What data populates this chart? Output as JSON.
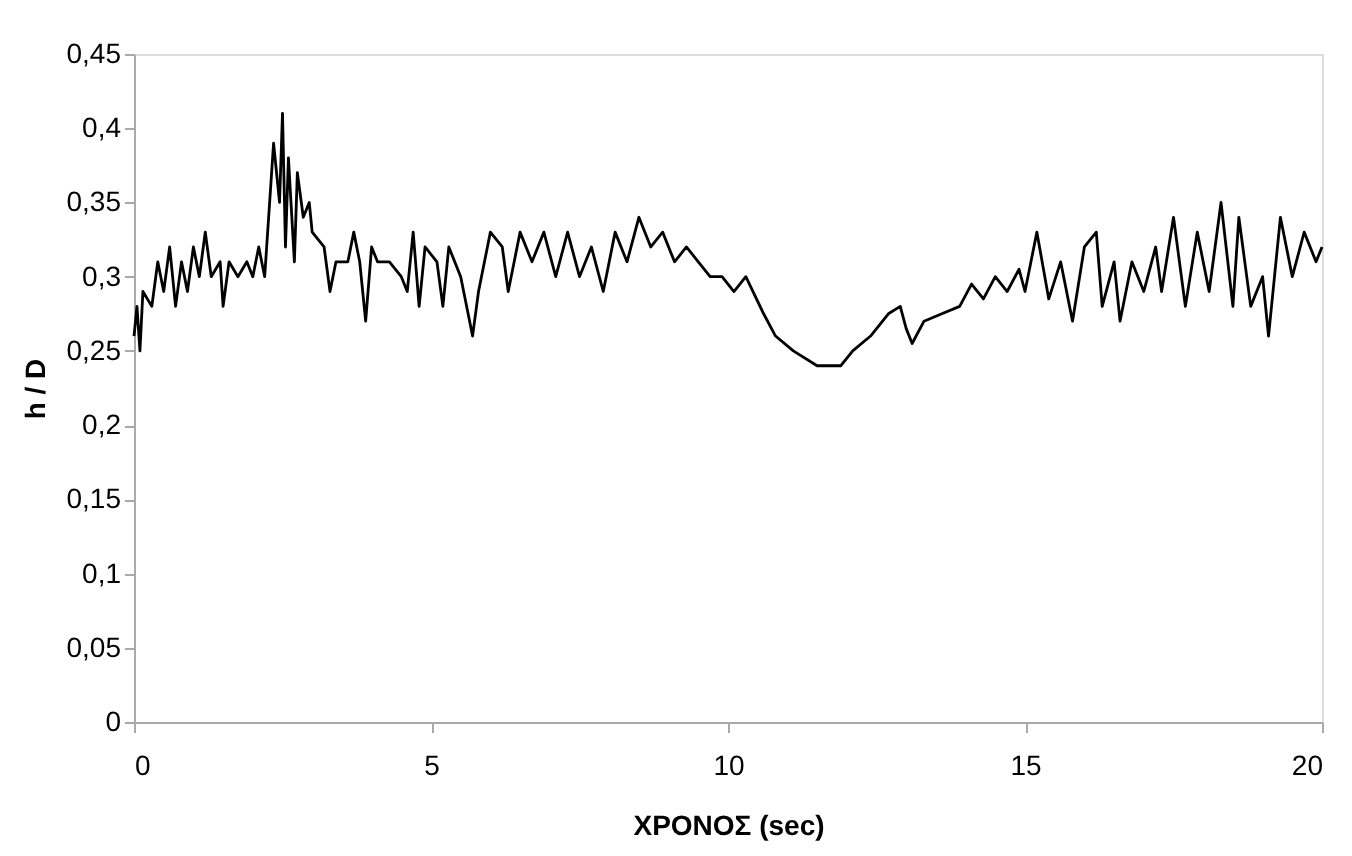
{
  "chart_data": {
    "type": "line",
    "xlabel": "ΧΡΟΝΟΣ (sec)",
    "ylabel": "h / D",
    "xlim": [
      0,
      20
    ],
    "xticks": [
      0,
      5,
      10,
      15,
      20
    ],
    "ylim": [
      0,
      0.45
    ],
    "yticks": [
      0,
      {
        "value": 0.05,
        "label": "0,05"
      },
      {
        "value": 0.1,
        "label": "0,1"
      },
      {
        "value": 0.15,
        "label": "0,15"
      },
      {
        "value": 0.2,
        "label": "0,2"
      },
      {
        "value": 0.25,
        "label": "0,25"
      },
      {
        "value": 0.3,
        "label": "0,3"
      },
      {
        "value": 0.35,
        "label": "0,35"
      },
      {
        "value": 0.4,
        "label": "0,4"
      },
      {
        "value": 0.45,
        "label": "0,45"
      }
    ],
    "grid": false,
    "marker": "none",
    "line_style": "solid",
    "series": [
      {
        "color": "#000000",
        "x": [
          0,
          0.05,
          0.1,
          0.15,
          0.3,
          0.4,
          0.5,
          0.6,
          0.7,
          0.8,
          0.9,
          1.0,
          1.1,
          1.2,
          1.3,
          1.45,
          1.5,
          1.6,
          1.75,
          1.9,
          2.0,
          2.1,
          2.2,
          2.3,
          2.35,
          2.45,
          2.5,
          2.55,
          2.6,
          2.7,
          2.75,
          2.85,
          2.95,
          3.0,
          3.2,
          3.3,
          3.4,
          3.6,
          3.7,
          3.8,
          3.9,
          4.0,
          4.1,
          4.3,
          4.5,
          4.6,
          4.7,
          4.8,
          4.9,
          5.1,
          5.2,
          5.3,
          5.5,
          5.7,
          5.8,
          6.0,
          6.2,
          6.3,
          6.5,
          6.7,
          6.9,
          7.1,
          7.3,
          7.5,
          7.7,
          7.9,
          8.1,
          8.3,
          8.5,
          8.7,
          8.9,
          9.1,
          9.3,
          9.5,
          9.7,
          9.9,
          10.1,
          10.3,
          10.6,
          10.8,
          11.1,
          11.5,
          11.9,
          12.1,
          12.4,
          12.7,
          12.9,
          13.0,
          13.1,
          13.3,
          13.6,
          13.9,
          14.1,
          14.3,
          14.5,
          14.7,
          14.9,
          15.0,
          15.2,
          15.4,
          15.6,
          15.8,
          16.0,
          16.2,
          16.3,
          16.5,
          16.6,
          16.8,
          17.0,
          17.2,
          17.3,
          17.5,
          17.7,
          17.9,
          18.1,
          18.3,
          18.5,
          18.6,
          18.8,
          19.0,
          19.1,
          19.3,
          19.5,
          19.7,
          19.9,
          20.0
        ],
        "values": [
          0.26,
          0.28,
          0.25,
          0.29,
          0.28,
          0.31,
          0.29,
          0.32,
          0.28,
          0.31,
          0.29,
          0.32,
          0.3,
          0.33,
          0.3,
          0.31,
          0.28,
          0.31,
          0.3,
          0.31,
          0.3,
          0.32,
          0.3,
          0.36,
          0.39,
          0.35,
          0.41,
          0.32,
          0.38,
          0.31,
          0.37,
          0.34,
          0.35,
          0.33,
          0.32,
          0.29,
          0.31,
          0.31,
          0.33,
          0.31,
          0.27,
          0.32,
          0.31,
          0.31,
          0.3,
          0.29,
          0.33,
          0.28,
          0.32,
          0.31,
          0.28,
          0.32,
          0.3,
          0.26,
          0.29,
          0.33,
          0.32,
          0.29,
          0.33,
          0.31,
          0.33,
          0.3,
          0.33,
          0.3,
          0.32,
          0.29,
          0.33,
          0.31,
          0.34,
          0.32,
          0.33,
          0.31,
          0.32,
          0.31,
          0.3,
          0.3,
          0.29,
          0.3,
          0.275,
          0.26,
          0.25,
          0.24,
          0.24,
          0.25,
          0.26,
          0.275,
          0.28,
          0.265,
          0.255,
          0.27,
          0.275,
          0.28,
          0.295,
          0.285,
          0.3,
          0.29,
          0.305,
          0.29,
          0.33,
          0.285,
          0.31,
          0.27,
          0.32,
          0.33,
          0.28,
          0.31,
          0.27,
          0.31,
          0.29,
          0.32,
          0.29,
          0.34,
          0.28,
          0.33,
          0.29,
          0.35,
          0.28,
          0.34,
          0.28,
          0.3,
          0.26,
          0.34,
          0.3,
          0.33,
          0.31,
          0.32
        ]
      }
    ]
  }
}
